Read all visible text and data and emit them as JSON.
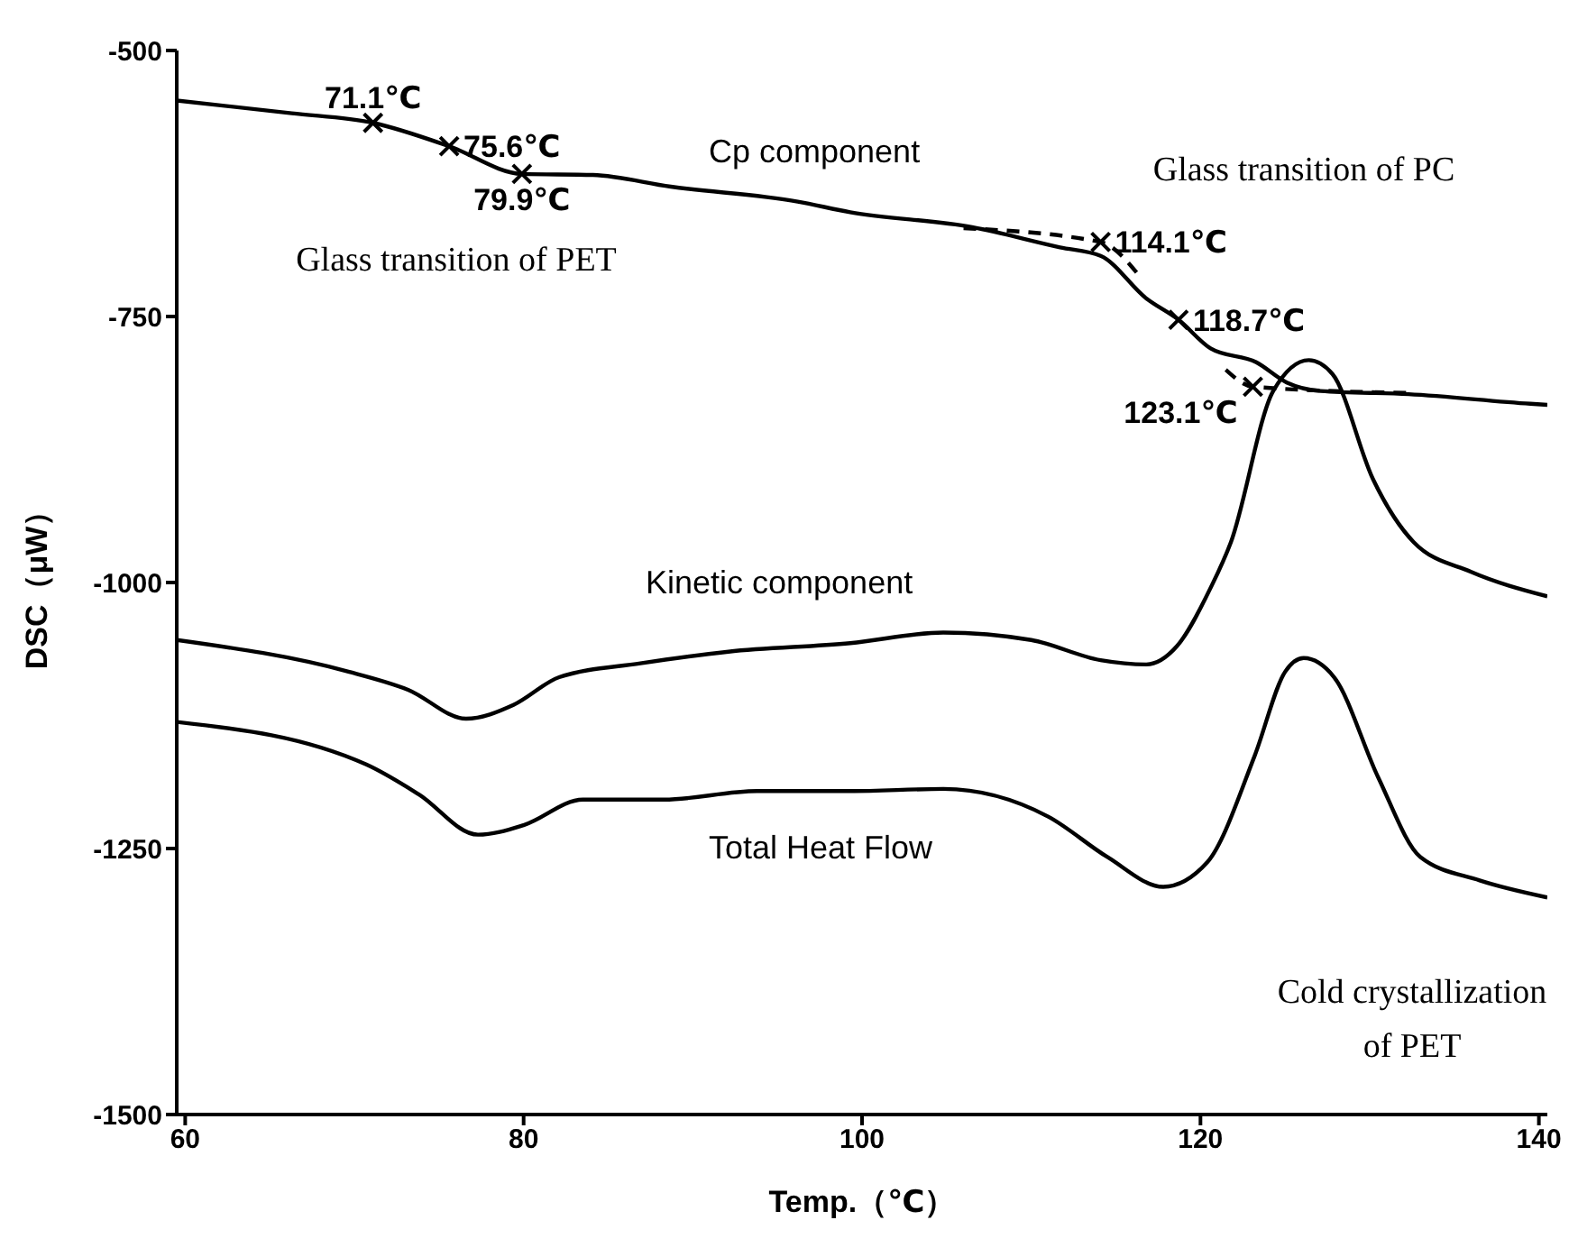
{
  "chart_data": {
    "type": "line",
    "xlabel": "Temp.（℃）",
    "ylabel": "DSC（μW）",
    "xlim": [
      59.5,
      140.5
    ],
    "xticks": [
      60,
      80,
      100,
      120,
      140
    ],
    "ylim": [
      -1500,
      -500
    ],
    "yticks": [
      -1500,
      -1250,
      -1000,
      -750,
      -500
    ],
    "grid": false,
    "legend": false,
    "line_style": "solid",
    "series": [
      {
        "name": "Cp component",
        "color": "#000000",
        "x": [
          59.5,
          66.3,
          71.1,
          75.6,
          79.9,
          84.1,
          88.7,
          96.2,
          99.3,
          106.5,
          111.7,
          114.1,
          116.8,
          118.7,
          120.6,
          123.3,
          125.1,
          127.1,
          132.3,
          139.5,
          140.5
        ],
        "values": [
          -547,
          -559,
          -568,
          -590,
          -616,
          -617,
          -628,
          -642,
          -652,
          -666,
          -685,
          -693,
          -733,
          -753,
          -780,
          -793,
          -812,
          -820,
          -823,
          -832,
          -833
        ]
      },
      {
        "name": "Kinetic component",
        "color": "#000000",
        "x": [
          59.5,
          69.7,
          73.2,
          76.6,
          79.4,
          82.1,
          86.9,
          92.1,
          99.3,
          104.8,
          110,
          114.1,
          116.8,
          118.6,
          120.6,
          121.8,
          124.3,
          126.4,
          127.8,
          130.2,
          132.6,
          136,
          140.5
        ],
        "values": [
          -1054,
          -1084,
          -1101,
          -1128,
          -1115,
          -1089,
          -1076,
          -1065,
          -1057,
          -1047,
          -1054,
          -1073,
          -1077,
          -1060,
          -1005,
          -962,
          -820,
          -791,
          -804,
          -903,
          -962,
          -990,
          -1013
        ]
      },
      {
        "name": "Total Heat Flow",
        "color": "#000000",
        "x": [
          59.5,
          70.7,
          73.8,
          77.3,
          80,
          83.5,
          88.3,
          93.8,
          99.3,
          104.8,
          111,
          114.5,
          117.8,
          120.4,
          123.2,
          125,
          126.1,
          127.9,
          130.5,
          133,
          136.5,
          140.5
        ],
        "values": [
          -1131,
          -1171,
          -1199,
          -1237,
          -1228,
          -1204,
          -1204,
          -1196,
          -1196,
          -1194,
          -1220,
          -1258,
          -1286,
          -1263,
          -1163,
          -1084,
          -1071,
          -1089,
          -1183,
          -1258,
          -1280,
          -1296
        ]
      },
      {
        "color": "#000000",
        "line_style": "dashed",
        "x": [
          106,
          114.1,
          116.4
        ],
        "values": [
          -667,
          -680,
          -712
        ]
      },
      {
        "color": "#000000",
        "line_style": "dashed",
        "x": [
          121.5,
          123.1,
          132.6
        ],
        "values": [
          -800,
          -816,
          -822
        ]
      },
      {
        "type": "scatter",
        "marker": "cross",
        "color": "#000000",
        "x": [
          71.1,
          75.6,
          79.9,
          114.1,
          118.7,
          123.1
        ],
        "values": [
          -568,
          -590,
          -616,
          -680,
          -753,
          -816
        ]
      }
    ],
    "annotations": [
      {
        "text": "71.1℃",
        "x": 71.1,
        "y": -568
      },
      {
        "text": "75.6℃",
        "x": 75.6,
        "y": -590
      },
      {
        "text": "79.9℃",
        "x": 79.9,
        "y": -616
      },
      {
        "text": "114.1℃",
        "x": 114.1,
        "y": -680
      },
      {
        "text": "118.7℃",
        "x": 118.7,
        "y": -753
      },
      {
        "text": "123.1℃",
        "x": 123.1,
        "y": -816
      },
      "Glass transition of PET",
      "Glass transition of PC",
      "Cold crystallization of PET"
    ]
  }
}
